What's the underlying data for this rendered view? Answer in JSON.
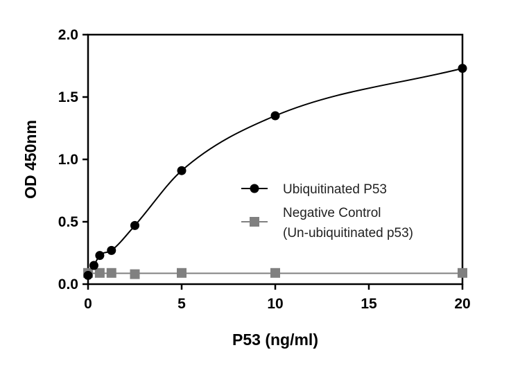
{
  "chart_data": {
    "type": "scatter",
    "xlabel": "P53 (ng/ml)",
    "ylabel": "OD 450nm",
    "xlim": [
      0,
      20
    ],
    "ylim": [
      0,
      2.0
    ],
    "xticks": [
      0,
      5,
      10,
      15,
      20
    ],
    "yticks": [
      0.0,
      0.5,
      1.0,
      1.5,
      2.0
    ],
    "xtick_labels": [
      "0",
      "5",
      "10",
      "15",
      "20"
    ],
    "ytick_labels": [
      "0.0",
      "0.5",
      "1.0",
      "1.5",
      "2.0"
    ],
    "grid": false,
    "legend_position": "center-right",
    "series": [
      {
        "name": "Ubiquitinated P53",
        "marker": "circle",
        "color": "#000000",
        "fit": "curve",
        "x": [
          0,
          0.3125,
          0.625,
          1.25,
          2.5,
          5,
          10,
          20
        ],
        "y": [
          0.07,
          0.15,
          0.23,
          0.27,
          0.47,
          0.91,
          1.35,
          1.73
        ]
      },
      {
        "name": "Negative Control\n(Un-ubiquitinated p53)",
        "name_lines": [
          "Negative Control",
          "(Un-ubiquitinated p53)"
        ],
        "marker": "square",
        "color": "#808080",
        "fit": "line",
        "x": [
          0,
          0.625,
          1.25,
          2.5,
          5,
          10,
          20
        ],
        "y": [
          0.09,
          0.09,
          0.09,
          0.08,
          0.09,
          0.09,
          0.09
        ]
      }
    ]
  }
}
